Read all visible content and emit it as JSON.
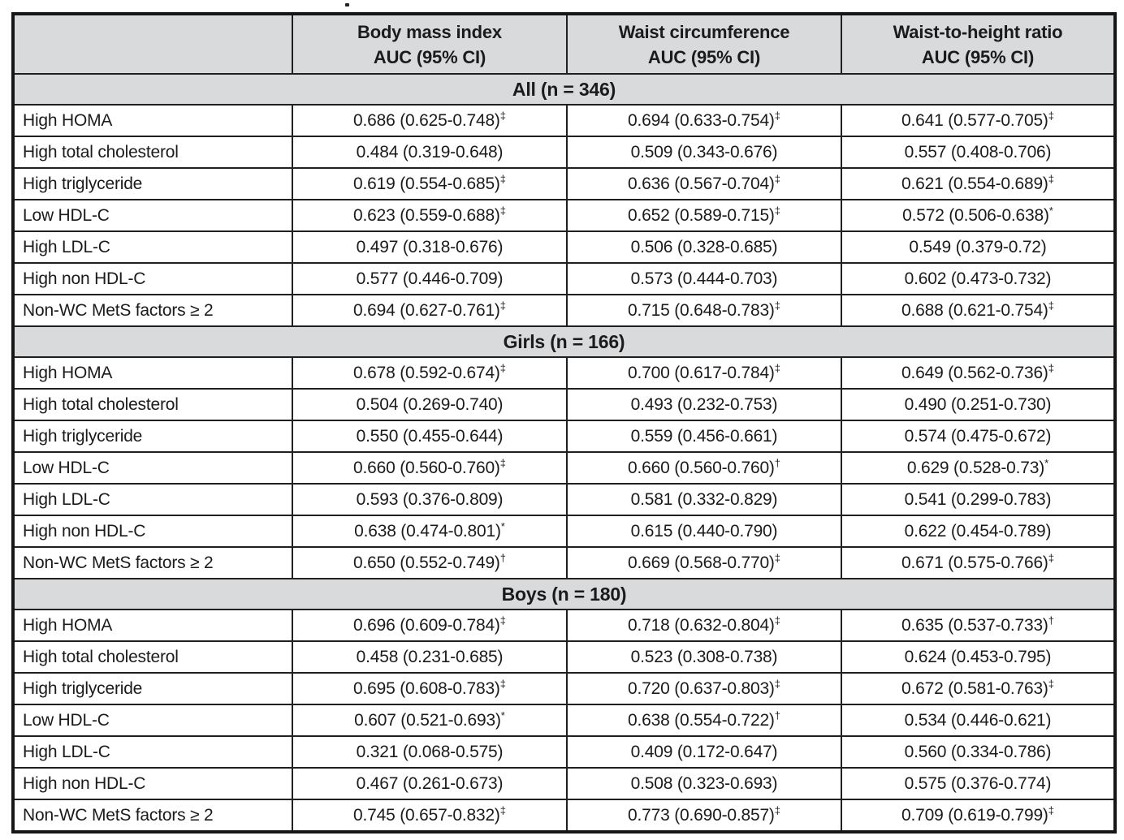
{
  "table": {
    "columns": [
      {
        "title": "",
        "subtitle": ""
      },
      {
        "title": "Body mass index",
        "subtitle": "AUC (95% CI)"
      },
      {
        "title": "Waist circumference",
        "subtitle": "AUC (95% CI)"
      },
      {
        "title": "Waist-to-height ratio",
        "subtitle": "AUC (95% CI)"
      }
    ],
    "sections": [
      {
        "title": "All (n = 346)",
        "rows": [
          {
            "label": "High HOMA",
            "cells": [
              {
                "value": "0.686 (0.625-0.748)",
                "marker": "‡"
              },
              {
                "value": "0.694 (0.633-0.754)",
                "marker": "‡"
              },
              {
                "value": "0.641 (0.577-0.705)",
                "marker": "‡"
              }
            ]
          },
          {
            "label": "High total cholesterol",
            "cells": [
              {
                "value": "0.484 (0.319-0.648)",
                "marker": ""
              },
              {
                "value": "0.509 (0.343-0.676)",
                "marker": ""
              },
              {
                "value": "0.557 (0.408-0.706)",
                "marker": ""
              }
            ]
          },
          {
            "label": "High triglyceride",
            "cells": [
              {
                "value": "0.619 (0.554-0.685)",
                "marker": "‡"
              },
              {
                "value": "0.636 (0.567-0.704)",
                "marker": "‡"
              },
              {
                "value": "0.621 (0.554-0.689)",
                "marker": "‡"
              }
            ]
          },
          {
            "label": "Low HDL-C",
            "cells": [
              {
                "value": "0.623 (0.559-0.688)",
                "marker": "‡"
              },
              {
                "value": "0.652 (0.589-0.715)",
                "marker": "‡"
              },
              {
                "value": "0.572 (0.506-0.638)",
                "marker": "*"
              }
            ]
          },
          {
            "label": "High LDL-C",
            "cells": [
              {
                "value": "0.497 (0.318-0.676)",
                "marker": ""
              },
              {
                "value": "0.506 (0.328-0.685)",
                "marker": ""
              },
              {
                "value": "0.549 (0.379-0.72)",
                "marker": ""
              }
            ]
          },
          {
            "label": "High non HDL-C",
            "cells": [
              {
                "value": "0.577 (0.446-0.709)",
                "marker": ""
              },
              {
                "value": "0.573 (0.444-0.703)",
                "marker": ""
              },
              {
                "value": "0.602 (0.473-0.732)",
                "marker": ""
              }
            ]
          },
          {
            "label": "Non-WC MetS factors ≥ 2",
            "cells": [
              {
                "value": "0.694 (0.627-0.761)",
                "marker": "‡"
              },
              {
                "value": "0.715 (0.648-0.783)",
                "marker": "‡"
              },
              {
                "value": "0.688 (0.621-0.754)",
                "marker": "‡"
              }
            ]
          }
        ]
      },
      {
        "title": "Girls (n = 166)",
        "rows": [
          {
            "label": "High HOMA",
            "cells": [
              {
                "value": "0.678 (0.592-0.674)",
                "marker": "‡"
              },
              {
                "value": "0.700 (0.617-0.784)",
                "marker": "‡"
              },
              {
                "value": "0.649 (0.562-0.736)",
                "marker": "‡"
              }
            ]
          },
          {
            "label": "High total cholesterol",
            "cells": [
              {
                "value": "0.504 (0.269-0.740)",
                "marker": ""
              },
              {
                "value": "0.493 (0.232-0.753)",
                "marker": ""
              },
              {
                "value": "0.490 (0.251-0.730)",
                "marker": ""
              }
            ]
          },
          {
            "label": "High triglyceride",
            "cells": [
              {
                "value": "0.550 (0.455-0.644)",
                "marker": ""
              },
              {
                "value": "0.559 (0.456-0.661)",
                "marker": ""
              },
              {
                "value": "0.574 (0.475-0.672)",
                "marker": ""
              }
            ]
          },
          {
            "label": "Low HDL-C",
            "cells": [
              {
                "value": "0.660 (0.560-0.760)",
                "marker": "‡"
              },
              {
                "value": "0.660 (0.560-0.760)",
                "marker": "†"
              },
              {
                "value": "0.629 (0.528-0.73)",
                "marker": "*"
              }
            ]
          },
          {
            "label": "High LDL-C",
            "cells": [
              {
                "value": "0.593 (0.376-0.809)",
                "marker": ""
              },
              {
                "value": "0.581 (0.332-0.829)",
                "marker": ""
              },
              {
                "value": "0.541 (0.299-0.783)",
                "marker": ""
              }
            ]
          },
          {
            "label": "High non HDL-C",
            "cells": [
              {
                "value": "0.638 (0.474-0.801)",
                "marker": "*"
              },
              {
                "value": "0.615 (0.440-0.790)",
                "marker": ""
              },
              {
                "value": "0.622 (0.454-0.789)",
                "marker": ""
              }
            ]
          },
          {
            "label": "Non-WC MetS factors ≥ 2",
            "cells": [
              {
                "value": "0.650 (0.552-0.749)",
                "marker": "†"
              },
              {
                "value": "0.669 (0.568-0.770)",
                "marker": "‡"
              },
              {
                "value": "0.671 (0.575-0.766)",
                "marker": "‡"
              }
            ]
          }
        ]
      },
      {
        "title": "Boys (n = 180)",
        "rows": [
          {
            "label": "High HOMA",
            "cells": [
              {
                "value": "0.696 (0.609-0.784)",
                "marker": "‡"
              },
              {
                "value": "0.718 (0.632-0.804)",
                "marker": "‡"
              },
              {
                "value": "0.635 (0.537-0.733)",
                "marker": "†"
              }
            ]
          },
          {
            "label": "High total cholesterol",
            "cells": [
              {
                "value": "0.458 (0.231-0.685)",
                "marker": ""
              },
              {
                "value": "0.523 (0.308-0.738)",
                "marker": ""
              },
              {
                "value": "0.624 (0.453-0.795)",
                "marker": ""
              }
            ]
          },
          {
            "label": "High triglyceride",
            "cells": [
              {
                "value": "0.695 (0.608-0.783)",
                "marker": "‡"
              },
              {
                "value": "0.720 (0.637-0.803)",
                "marker": "‡"
              },
              {
                "value": "0.672 (0.581-0.763)",
                "marker": "‡"
              }
            ]
          },
          {
            "label": "Low HDL-C",
            "cells": [
              {
                "value": "0.607 (0.521-0.693)",
                "marker": "*"
              },
              {
                "value": "0.638 (0.554-0.722)",
                "marker": "†"
              },
              {
                "value": "0.534 (0.446-0.621)",
                "marker": ""
              }
            ]
          },
          {
            "label": "High LDL-C",
            "cells": [
              {
                "value": "0.321 (0.068-0.575)",
                "marker": ""
              },
              {
                "value": "0.409 (0.172-0.647)",
                "marker": ""
              },
              {
                "value": "0.560 (0.334-0.786)",
                "marker": ""
              }
            ]
          },
          {
            "label": "High non HDL-C",
            "cells": [
              {
                "value": "0.467 (0.261-0.673)",
                "marker": ""
              },
              {
                "value": "0.508 (0.323-0.693)",
                "marker": ""
              },
              {
                "value": "0.575 (0.376-0.774)",
                "marker": ""
              }
            ]
          },
          {
            "label": "Non-WC MetS factors ≥ 2",
            "cells": [
              {
                "value": "0.745 (0.657-0.832)",
                "marker": "‡"
              },
              {
                "value": "0.773 (0.690-0.857)",
                "marker": "‡"
              },
              {
                "value": "0.709 (0.619-0.799)",
                "marker": "‡"
              }
            ]
          }
        ]
      }
    ]
  },
  "colors": {
    "header_band": "#d9dadc",
    "border": "#202020",
    "text": "#1b1b1b"
  }
}
